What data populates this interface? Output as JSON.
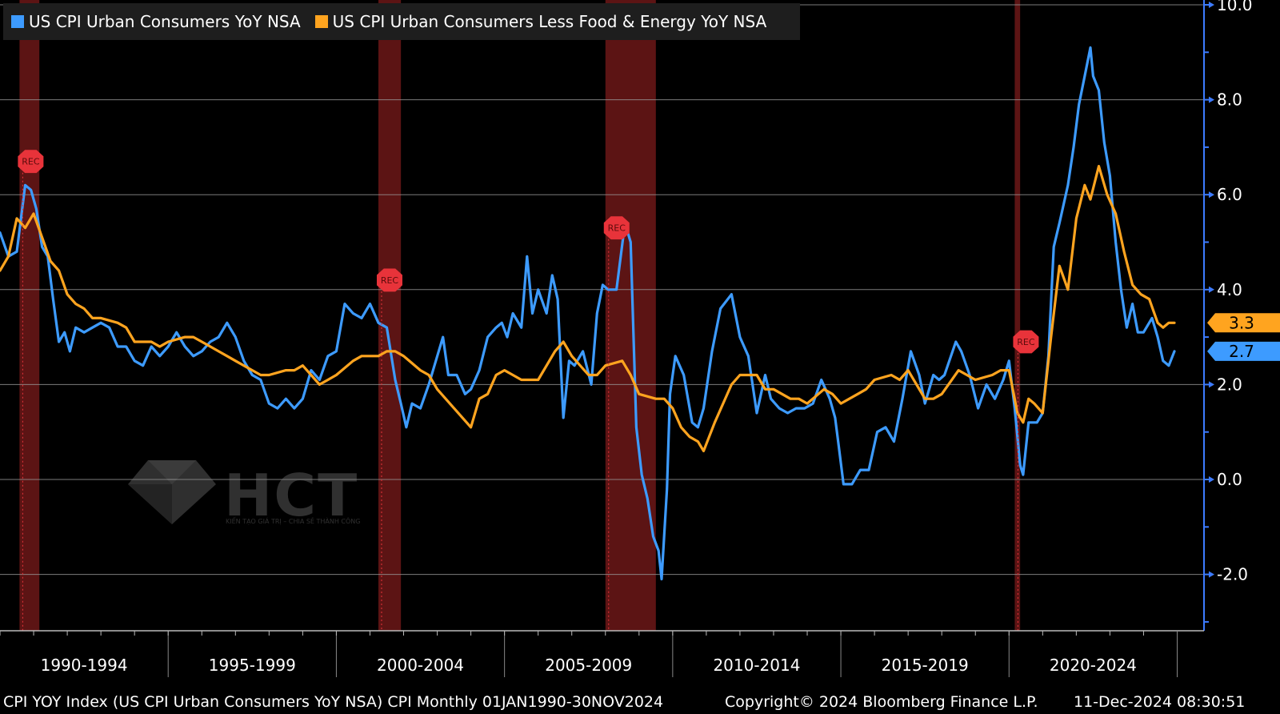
{
  "legend": {
    "series1_label": "US CPI Urban Consumers YoY NSA",
    "series2_label": "US CPI Urban Consumers Less Food & Energy YoY NSA"
  },
  "colors": {
    "background": "#000000",
    "series1": "#3d9bff",
    "series2": "#ffa41f",
    "recession": "#5c1414",
    "grid": "#9a9a9a",
    "axis": "#3d7bff",
    "rec_marker": "#e8333a"
  },
  "watermark": {
    "text": "HCT",
    "subtext": "KIẾN TẠO GIÁ TRỊ – CHIA SẺ THÀNH CÔNG"
  },
  "footer": {
    "index_text": "CPI YOY Index (US CPI Urban Consumers YoY NSA) CPI  Monthly 01JAN1990-30NOV2024",
    "copyright": "Copyright© 2024 Bloomberg Finance L.P.",
    "timestamp": "11-Dec-2024 08:30:51"
  },
  "chart_data": {
    "type": "line",
    "x_range": [
      1990.0,
      2024.917
    ],
    "ylim": [
      -3.2,
      10.0
    ],
    "y_ticks": [
      -2.0,
      0.0,
      2.0,
      4.0,
      6.0,
      8.0,
      10.0
    ],
    "y_tick_labels": [
      "-2.0",
      "0.0",
      "2.0",
      "4.0",
      "6.0",
      "8.0",
      "10.0"
    ],
    "x_categories": [
      "1990-1994",
      "1995-1999",
      "2000-2004",
      "2005-2009",
      "2010-2014",
      "2015-2019",
      "2020-2024"
    ],
    "grid": true,
    "legend_position": "top-left",
    "last_value_labels": [
      "3.3",
      "2.7"
    ],
    "recession_marker_label": "REC",
    "recessions": [
      [
        1990.58,
        1991.17
      ],
      [
        2001.25,
        2001.92
      ],
      [
        2008.0,
        2009.5
      ],
      [
        2020.17,
        2020.33
      ]
    ],
    "series": [
      {
        "name": "US CPI Urban Consumers YoY NSA",
        "points": [
          [
            1990.0,
            5.2
          ],
          [
            1990.25,
            4.7
          ],
          [
            1990.5,
            4.8
          ],
          [
            1990.75,
            6.2
          ],
          [
            1990.92,
            6.1
          ],
          [
            1991.08,
            5.7
          ],
          [
            1991.25,
            4.9
          ],
          [
            1991.42,
            4.7
          ],
          [
            1991.58,
            3.8
          ],
          [
            1991.75,
            2.9
          ],
          [
            1991.92,
            3.1
          ],
          [
            1992.08,
            2.7
          ],
          [
            1992.25,
            3.2
          ],
          [
            1992.5,
            3.1
          ],
          [
            1992.75,
            3.2
          ],
          [
            1993.0,
            3.3
          ],
          [
            1993.25,
            3.2
          ],
          [
            1993.5,
            2.8
          ],
          [
            1993.75,
            2.8
          ],
          [
            1994.0,
            2.5
          ],
          [
            1994.25,
            2.4
          ],
          [
            1994.5,
            2.8
          ],
          [
            1994.75,
            2.6
          ],
          [
            1995.0,
            2.8
          ],
          [
            1995.25,
            3.1
          ],
          [
            1995.5,
            2.8
          ],
          [
            1995.75,
            2.6
          ],
          [
            1996.0,
            2.7
          ],
          [
            1996.25,
            2.9
          ],
          [
            1996.5,
            3.0
          ],
          [
            1996.75,
            3.3
          ],
          [
            1997.0,
            3.0
          ],
          [
            1997.25,
            2.5
          ],
          [
            1997.5,
            2.2
          ],
          [
            1997.75,
            2.1
          ],
          [
            1998.0,
            1.6
          ],
          [
            1998.25,
            1.5
          ],
          [
            1998.5,
            1.7
          ],
          [
            1998.75,
            1.5
          ],
          [
            1999.0,
            1.7
          ],
          [
            1999.25,
            2.3
          ],
          [
            1999.5,
            2.1
          ],
          [
            1999.75,
            2.6
          ],
          [
            2000.0,
            2.7
          ],
          [
            2000.25,
            3.7
          ],
          [
            2000.5,
            3.5
          ],
          [
            2000.75,
            3.4
          ],
          [
            2001.0,
            3.7
          ],
          [
            2001.25,
            3.3
          ],
          [
            2001.5,
            3.2
          ],
          [
            2001.75,
            2.1
          ],
          [
            2001.92,
            1.6
          ],
          [
            2002.08,
            1.1
          ],
          [
            2002.25,
            1.6
          ],
          [
            2002.5,
            1.5
          ],
          [
            2002.75,
            2.0
          ],
          [
            2003.0,
            2.6
          ],
          [
            2003.17,
            3.0
          ],
          [
            2003.33,
            2.2
          ],
          [
            2003.58,
            2.2
          ],
          [
            2003.83,
            1.8
          ],
          [
            2004.0,
            1.9
          ],
          [
            2004.25,
            2.3
          ],
          [
            2004.5,
            3.0
          ],
          [
            2004.75,
            3.2
          ],
          [
            2004.92,
            3.3
          ],
          [
            2005.08,
            3.0
          ],
          [
            2005.25,
            3.5
          ],
          [
            2005.5,
            3.2
          ],
          [
            2005.67,
            4.7
          ],
          [
            2005.83,
            3.5
          ],
          [
            2006.0,
            4.0
          ],
          [
            2006.25,
            3.5
          ],
          [
            2006.42,
            4.3
          ],
          [
            2006.58,
            3.8
          ],
          [
            2006.75,
            1.3
          ],
          [
            2006.92,
            2.5
          ],
          [
            2007.08,
            2.4
          ],
          [
            2007.33,
            2.7
          ],
          [
            2007.58,
            2.0
          ],
          [
            2007.75,
            3.5
          ],
          [
            2007.92,
            4.1
          ],
          [
            2008.08,
            4.0
          ],
          [
            2008.33,
            4.0
          ],
          [
            2008.58,
            5.4
          ],
          [
            2008.75,
            5.0
          ],
          [
            2008.92,
            1.1
          ],
          [
            2009.08,
            0.1
          ],
          [
            2009.25,
            -0.4
          ],
          [
            2009.42,
            -1.2
          ],
          [
            2009.58,
            -1.5
          ],
          [
            2009.67,
            -2.1
          ],
          [
            2009.83,
            -0.2
          ],
          [
            2009.92,
            1.8
          ],
          [
            2010.08,
            2.6
          ],
          [
            2010.33,
            2.2
          ],
          [
            2010.58,
            1.2
          ],
          [
            2010.75,
            1.1
          ],
          [
            2010.92,
            1.5
          ],
          [
            2011.17,
            2.7
          ],
          [
            2011.42,
            3.6
          ],
          [
            2011.75,
            3.9
          ],
          [
            2012.0,
            3.0
          ],
          [
            2012.25,
            2.6
          ],
          [
            2012.5,
            1.4
          ],
          [
            2012.75,
            2.2
          ],
          [
            2012.92,
            1.7
          ],
          [
            2013.17,
            1.5
          ],
          [
            2013.42,
            1.4
          ],
          [
            2013.67,
            1.5
          ],
          [
            2013.92,
            1.5
          ],
          [
            2014.17,
            1.6
          ],
          [
            2014.42,
            2.1
          ],
          [
            2014.67,
            1.7
          ],
          [
            2014.83,
            1.3
          ],
          [
            2014.92,
            0.8
          ],
          [
            2015.08,
            -0.1
          ],
          [
            2015.33,
            -0.1
          ],
          [
            2015.58,
            0.2
          ],
          [
            2015.83,
            0.2
          ],
          [
            2016.08,
            1.0
          ],
          [
            2016.33,
            1.1
          ],
          [
            2016.58,
            0.8
          ],
          [
            2016.83,
            1.7
          ],
          [
            2017.08,
            2.7
          ],
          [
            2017.33,
            2.2
          ],
          [
            2017.5,
            1.6
          ],
          [
            2017.75,
            2.2
          ],
          [
            2017.92,
            2.1
          ],
          [
            2018.08,
            2.2
          ],
          [
            2018.42,
            2.9
          ],
          [
            2018.58,
            2.7
          ],
          [
            2018.83,
            2.2
          ],
          [
            2019.08,
            1.5
          ],
          [
            2019.33,
            2.0
          ],
          [
            2019.58,
            1.7
          ],
          [
            2019.83,
            2.1
          ],
          [
            2020.0,
            2.5
          ],
          [
            2020.17,
            1.5
          ],
          [
            2020.33,
            0.3
          ],
          [
            2020.42,
            0.1
          ],
          [
            2020.58,
            1.2
          ],
          [
            2020.83,
            1.2
          ],
          [
            2021.0,
            1.4
          ],
          [
            2021.17,
            2.6
          ],
          [
            2021.33,
            4.9
          ],
          [
            2021.5,
            5.4
          ],
          [
            2021.75,
            6.2
          ],
          [
            2021.92,
            7.0
          ],
          [
            2022.08,
            7.9
          ],
          [
            2022.25,
            8.5
          ],
          [
            2022.42,
            9.1
          ],
          [
            2022.5,
            8.5
          ],
          [
            2022.67,
            8.2
          ],
          [
            2022.83,
            7.1
          ],
          [
            2023.0,
            6.4
          ],
          [
            2023.17,
            5.0
          ],
          [
            2023.33,
            4.0
          ],
          [
            2023.5,
            3.2
          ],
          [
            2023.67,
            3.7
          ],
          [
            2023.83,
            3.1
          ],
          [
            2024.0,
            3.1
          ],
          [
            2024.25,
            3.4
          ],
          [
            2024.42,
            3.0
          ],
          [
            2024.58,
            2.5
          ],
          [
            2024.75,
            2.4
          ],
          [
            2024.917,
            2.7
          ]
        ]
      },
      {
        "name": "US CPI Urban Consumers Less Food & Energy YoY NSA",
        "points": [
          [
            1990.0,
            4.4
          ],
          [
            1990.25,
            4.7
          ],
          [
            1990.5,
            5.5
          ],
          [
            1990.75,
            5.3
          ],
          [
            1991.0,
            5.6
          ],
          [
            1991.25,
            5.1
          ],
          [
            1991.5,
            4.6
          ],
          [
            1991.75,
            4.4
          ],
          [
            1992.0,
            3.9
          ],
          [
            1992.25,
            3.7
          ],
          [
            1992.5,
            3.6
          ],
          [
            1992.75,
            3.4
          ],
          [
            1993.0,
            3.4
          ],
          [
            1993.5,
            3.3
          ],
          [
            1993.75,
            3.2
          ],
          [
            1994.0,
            2.9
          ],
          [
            1994.5,
            2.9
          ],
          [
            1994.75,
            2.8
          ],
          [
            1995.0,
            2.9
          ],
          [
            1995.5,
            3.0
          ],
          [
            1995.75,
            3.0
          ],
          [
            1996.0,
            2.9
          ],
          [
            1996.5,
            2.7
          ],
          [
            1996.75,
            2.6
          ],
          [
            1997.0,
            2.5
          ],
          [
            1997.5,
            2.3
          ],
          [
            1997.75,
            2.2
          ],
          [
            1998.0,
            2.2
          ],
          [
            1998.5,
            2.3
          ],
          [
            1998.75,
            2.3
          ],
          [
            1999.0,
            2.4
          ],
          [
            1999.25,
            2.2
          ],
          [
            1999.5,
            2.0
          ],
          [
            1999.75,
            2.1
          ],
          [
            2000.0,
            2.2
          ],
          [
            2000.5,
            2.5
          ],
          [
            2000.75,
            2.6
          ],
          [
            2001.0,
            2.6
          ],
          [
            2001.25,
            2.6
          ],
          [
            2001.5,
            2.7
          ],
          [
            2001.75,
            2.7
          ],
          [
            2002.0,
            2.6
          ],
          [
            2002.5,
            2.3
          ],
          [
            2002.75,
            2.2
          ],
          [
            2003.0,
            1.9
          ],
          [
            2003.5,
            1.5
          ],
          [
            2003.75,
            1.3
          ],
          [
            2004.0,
            1.1
          ],
          [
            2004.25,
            1.7
          ],
          [
            2004.5,
            1.8
          ],
          [
            2004.75,
            2.2
          ],
          [
            2005.0,
            2.3
          ],
          [
            2005.5,
            2.1
          ],
          [
            2005.75,
            2.1
          ],
          [
            2006.0,
            2.1
          ],
          [
            2006.5,
            2.7
          ],
          [
            2006.75,
            2.9
          ],
          [
            2007.0,
            2.6
          ],
          [
            2007.5,
            2.2
          ],
          [
            2007.75,
            2.2
          ],
          [
            2008.0,
            2.4
          ],
          [
            2008.5,
            2.5
          ],
          [
            2008.75,
            2.2
          ],
          [
            2009.0,
            1.8
          ],
          [
            2009.5,
            1.7
          ],
          [
            2009.75,
            1.7
          ],
          [
            2010.0,
            1.5
          ],
          [
            2010.25,
            1.1
          ],
          [
            2010.5,
            0.9
          ],
          [
            2010.75,
            0.8
          ],
          [
            2010.92,
            0.6
          ],
          [
            2011.25,
            1.2
          ],
          [
            2011.5,
            1.6
          ],
          [
            2011.75,
            2.0
          ],
          [
            2012.0,
            2.2
          ],
          [
            2012.5,
            2.2
          ],
          [
            2012.75,
            1.9
          ],
          [
            2013.0,
            1.9
          ],
          [
            2013.5,
            1.7
          ],
          [
            2013.75,
            1.7
          ],
          [
            2014.0,
            1.6
          ],
          [
            2014.5,
            1.9
          ],
          [
            2014.75,
            1.8
          ],
          [
            2015.0,
            1.6
          ],
          [
            2015.5,
            1.8
          ],
          [
            2015.75,
            1.9
          ],
          [
            2016.0,
            2.1
          ],
          [
            2016.5,
            2.2
          ],
          [
            2016.75,
            2.1
          ],
          [
            2017.0,
            2.3
          ],
          [
            2017.5,
            1.7
          ],
          [
            2017.75,
            1.7
          ],
          [
            2018.0,
            1.8
          ],
          [
            2018.5,
            2.3
          ],
          [
            2018.75,
            2.2
          ],
          [
            2019.0,
            2.1
          ],
          [
            2019.5,
            2.2
          ],
          [
            2019.75,
            2.3
          ],
          [
            2020.0,
            2.3
          ],
          [
            2020.25,
            1.4
          ],
          [
            2020.42,
            1.2
          ],
          [
            2020.58,
            1.7
          ],
          [
            2020.75,
            1.6
          ],
          [
            2021.0,
            1.4
          ],
          [
            2021.25,
            3.0
          ],
          [
            2021.5,
            4.5
          ],
          [
            2021.75,
            4.0
          ],
          [
            2022.0,
            5.5
          ],
          [
            2022.25,
            6.2
          ],
          [
            2022.42,
            5.9
          ],
          [
            2022.67,
            6.6
          ],
          [
            2022.92,
            6.0
          ],
          [
            2023.17,
            5.6
          ],
          [
            2023.42,
            4.8
          ],
          [
            2023.67,
            4.1
          ],
          [
            2023.92,
            3.9
          ],
          [
            2024.17,
            3.8
          ],
          [
            2024.42,
            3.3
          ],
          [
            2024.58,
            3.2
          ],
          [
            2024.75,
            3.3
          ],
          [
            2024.917,
            3.3
          ]
        ]
      }
    ]
  }
}
